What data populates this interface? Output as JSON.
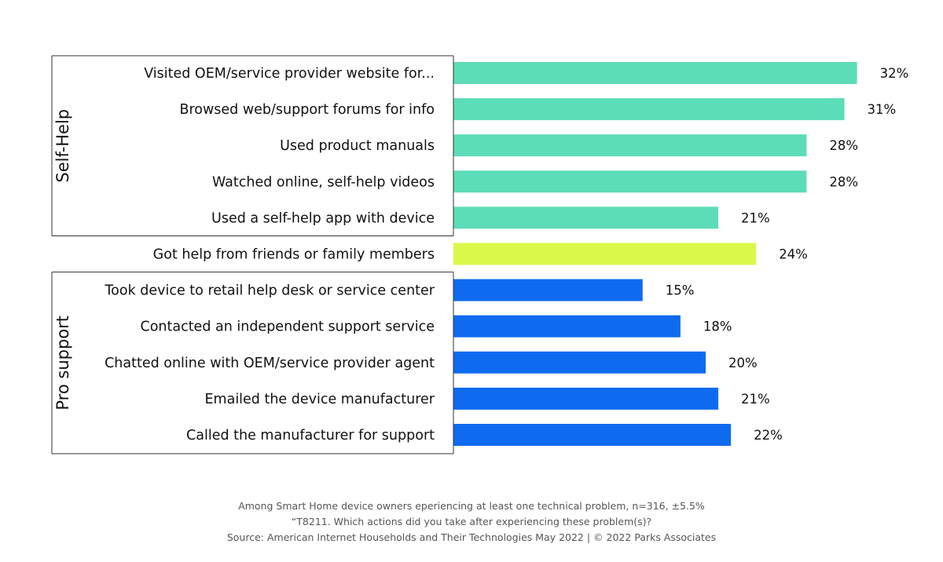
{
  "chart_data": {
    "type": "bar",
    "orientation": "horizontal",
    "value_suffix": "%",
    "xlim": [
      0,
      35
    ],
    "colors": {
      "Self-Help": "#5ddcb8",
      "Friends/Family": "#d9f84a",
      "Pro support": "#0e6bf0"
    },
    "groups": [
      {
        "name": "Self-Help",
        "color_key": "Self-Help",
        "label_printed": true,
        "items": [
          {
            "label": "Visited OEM/service provider website for...",
            "value": 32
          },
          {
            "label": "Browsed web/support forums for info",
            "value": 31
          },
          {
            "label": "Used product manuals",
            "value": 28
          },
          {
            "label": "Watched online, self-help videos",
            "value": 28
          },
          {
            "label": "Used a self-help app with device",
            "value": 21
          }
        ]
      },
      {
        "name": "",
        "color_key": "Friends/Family",
        "label_printed": false,
        "items": [
          {
            "label": "Got help from friends or family members",
            "value": 24
          }
        ]
      },
      {
        "name": "Pro support",
        "color_key": "Pro support",
        "label_printed": true,
        "items": [
          {
            "label": "Took device to retail help desk or service center",
            "value": 15
          },
          {
            "label": "Contacted an independent support service",
            "value": 18
          },
          {
            "label": "Chatted online with OEM/service provider agent",
            "value": 20
          },
          {
            "label": "Emailed the device manufacturer",
            "value": 21
          },
          {
            "label": "Called the manufacturer for support",
            "value": 22
          }
        ]
      }
    ]
  },
  "footnotes": {
    "line1": "Among Smart Home device owners eperiencing at least one technical problem, n=316, ±5.5%",
    "line2": "“T8211. Which actions did you take after experiencing these problem(s)?",
    "line3": "Source: American Internet Households and Their Technologies May 2022 | © 2022 Parks Associates"
  }
}
